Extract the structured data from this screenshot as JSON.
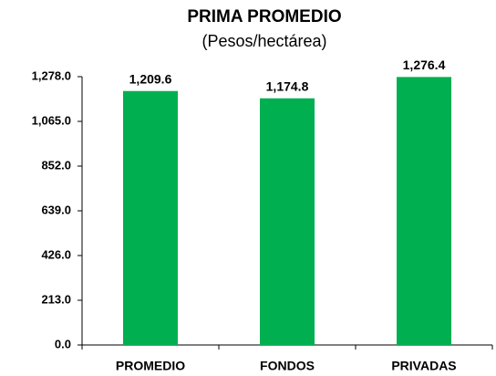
{
  "chart_data": {
    "type": "bar",
    "title": "PRIMA PROMEDIO",
    "subtitle": "(Pesos/hectárea)",
    "categories": [
      "PROMEDIO",
      "FONDOS",
      "PRIVADAS"
    ],
    "values": [
      1209.6,
      1174.8,
      1276.4
    ],
    "value_labels": [
      "1,209.6",
      "1,174.8",
      "1,276.4"
    ],
    "color": "#00b050",
    "ylim": [
      0,
      1278
    ],
    "yticks": [
      {
        "value": 0,
        "label": "0.0"
      },
      {
        "value": 213,
        "label": "213.0"
      },
      {
        "value": 426,
        "label": "426.0"
      },
      {
        "value": 639,
        "label": "639.0"
      },
      {
        "value": 852,
        "label": "852.0"
      },
      {
        "value": 1065,
        "label": "1,065.0"
      },
      {
        "value": 1278,
        "label": "1,278.0"
      }
    ],
    "grid": false
  }
}
